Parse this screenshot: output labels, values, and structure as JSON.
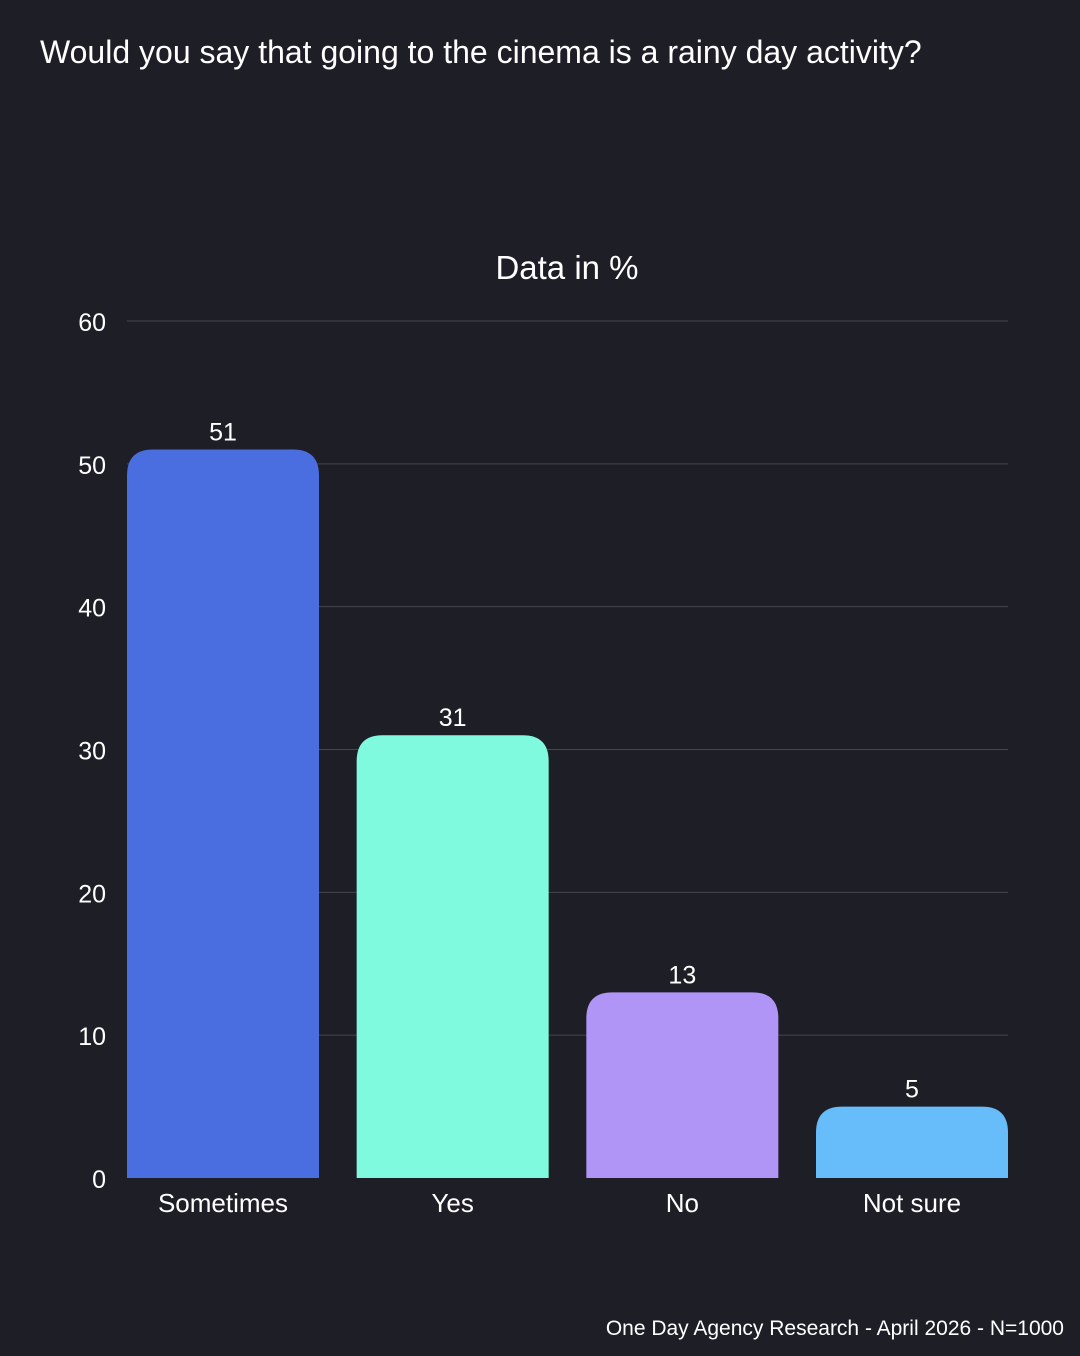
{
  "question": "Would you say that going to the cinema is a rainy day activity?",
  "footer": "One Day Agency Research - April 2026 - N=1000",
  "colors": {
    "background": "#1e1f26",
    "grid": "#45464e",
    "text": "#ffffff"
  },
  "chart_data": {
    "type": "bar",
    "title": "Data in %",
    "categories": [
      "Sometimes",
      "Yes",
      "No",
      "Not sure"
    ],
    "values": [
      51,
      31,
      13,
      5
    ],
    "bar_colors": [
      "#4a6ddf",
      "#80fade",
      "#b094f6",
      "#67bcfa"
    ],
    "ylim": [
      0,
      60
    ],
    "yticks": [
      0,
      10,
      20,
      30,
      40,
      50,
      60
    ],
    "grid": true,
    "data_labels": true,
    "legend": "none"
  }
}
